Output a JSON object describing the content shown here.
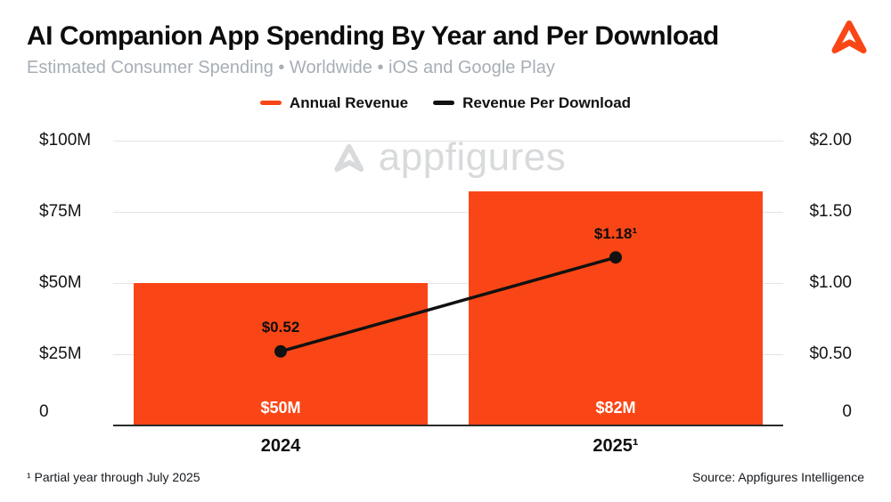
{
  "brand": {
    "orange": "#fa4616",
    "black": "#111111",
    "watermark_gray": "#d8dadc"
  },
  "header": {
    "title": "AI Companion App Spending By Year and Per Download",
    "subtitle": "Estimated Consumer Spending • Worldwide • iOS and Google Play"
  },
  "legend": [
    {
      "label": "Annual Revenue",
      "color": "#fa4616"
    },
    {
      "label": "Revenue Per Download",
      "color": "#111111"
    }
  ],
  "watermark": "appfigures",
  "footer": {
    "note": "¹ Partial year through July 2025",
    "source": "Source: Appfigures Intelligence"
  },
  "chart_data": {
    "type": "bar+line",
    "categories": [
      "2024",
      "2025¹"
    ],
    "series": [
      {
        "name": "Annual Revenue",
        "type": "bar",
        "axis": "left",
        "values": [
          50,
          82
        ],
        "labels": [
          "$50M",
          "$82M"
        ],
        "color": "#fa4616"
      },
      {
        "name": "Revenue Per Download",
        "type": "line",
        "axis": "right",
        "values": [
          0.52,
          1.18
        ],
        "labels": [
          "$0.52",
          "$1.18¹"
        ],
        "color": "#111111"
      }
    ],
    "left_axis": {
      "max": 100,
      "ticks": [
        0,
        25,
        50,
        75,
        100
      ],
      "tick_labels": [
        "0",
        "$25M",
        "$50M",
        "$75M",
        "$100M"
      ]
    },
    "right_axis": {
      "max": 2,
      "ticks": [
        0,
        0.5,
        1,
        1.5,
        2
      ],
      "tick_labels": [
        "0",
        "$0.50",
        "$1.00",
        "$1.50",
        "$2.00"
      ]
    },
    "grid": true,
    "legend_position": "top",
    "bar_width_pct": 44
  }
}
